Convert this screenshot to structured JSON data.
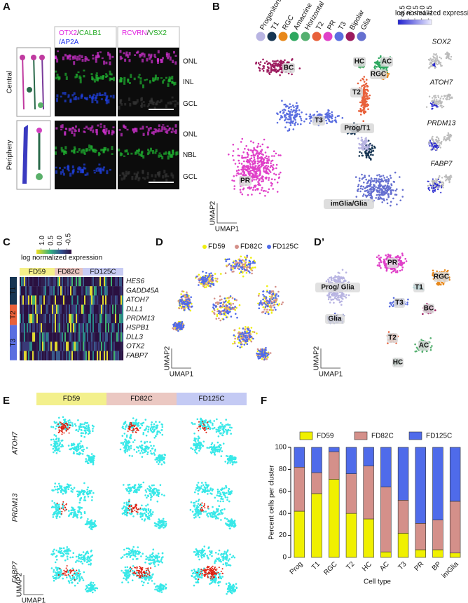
{
  "panel_a": {
    "label": "A",
    "stain_left": [
      {
        "text": "OTX2",
        "color": "#e020e0"
      },
      {
        "text": "/",
        "color": "#222222"
      },
      {
        "text": "CALB1",
        "color": "#22aa22"
      }
    ],
    "stain_left_2": [
      {
        "text": "/AP2A",
        "color": "#2233ee"
      }
    ],
    "stain_right": [
      {
        "text": "RCVRN",
        "color": "#e020e0"
      },
      {
        "text": "/",
        "color": "#222222"
      },
      {
        "text": "VSX2",
        "color": "#22aa22"
      }
    ],
    "rows": [
      "Central",
      "Periphery"
    ],
    "layers": [
      [
        "ONL",
        "INL",
        "GCL"
      ],
      [
        "ONL",
        "NBL",
        "GCL"
      ]
    ]
  },
  "panel_b": {
    "label": "B",
    "clusters": [
      {
        "name": "Progenitors",
        "color": "#b8b4e2"
      },
      {
        "name": "T1",
        "color": "#163552"
      },
      {
        "name": "RGC",
        "color": "#e8881a"
      },
      {
        "name": "Amacrine",
        "color": "#2fa860"
      },
      {
        "name": "Horizontal",
        "color": "#55b070"
      },
      {
        "name": "T2",
        "color": "#e8603a"
      },
      {
        "name": "PR",
        "color": "#e040c8"
      },
      {
        "name": "T3",
        "color": "#5a6ee0"
      },
      {
        "name": "Bipolar",
        "color": "#9c1a5e"
      },
      {
        "name": "Glia",
        "color": "#6670d0"
      }
    ],
    "colorbar": {
      "title": "log normalized expression",
      "lim": [
        3.75,
        1.25
      ],
      "ticks": [
        3.5,
        {
          "value": 3,
          "label": "3.0"
        },
        2.5,
        {
          "value": 2,
          "label": "2.0"
        },
        1.5
      ]
    },
    "cluster_labels": [
      "BC",
      "HC",
      "AC",
      "RGC",
      "T2",
      "T3",
      "Prog/T1",
      "PR",
      "imGlia/Glia"
    ],
    "genes": [
      "SOX2",
      "ATOH7",
      "PRDM13",
      "FABP7"
    ],
    "x_axis": "UMAP1",
    "y_axis": "UMAP2"
  },
  "panel_c": {
    "label": "C",
    "colorbar": {
      "title": "log normalized expression",
      "lim": [
        1.25,
        -0.75
      ],
      "ticks": [
        {
          "value": 1,
          "label": "1.0"
        },
        0.5,
        {
          "value": 0,
          "label": "0.0"
        },
        -0.5
      ]
    },
    "samples": [
      {
        "name": "FD59",
        "color": "#f5f08a"
      },
      {
        "name": "FD82C",
        "color": "#e8c4c0"
      },
      {
        "name": "FD125C",
        "color": "#c8ccf4"
      }
    ],
    "genes": [
      "HES6",
      "GADD45A",
      "ATOH7",
      "DLL1",
      "PRDM13",
      "HSPB1",
      "DLL3",
      "OTX2",
      "FABP7"
    ],
    "groups": [
      {
        "name": "T1",
        "color": "#163552"
      },
      {
        "name": "T2",
        "color": "#e8603a"
      },
      {
        "name": "T3",
        "color": "#5a6ee0"
      }
    ]
  },
  "panel_d": {
    "label": "D",
    "samples": [
      {
        "name": "FD59",
        "color": "#eeee10"
      },
      {
        "name": "FD82C",
        "color": "#d4908a"
      },
      {
        "name": "FD125C",
        "color": "#4f6bea"
      }
    ],
    "x_axis": "UMAP1",
    "y_axis": "UMAP2"
  },
  "panel_d2": {
    "label": "D’",
    "cluster_labels": [
      "PR",
      "Prog/ Glia",
      "RGC",
      "T1",
      "T3",
      "BC",
      "Glia",
      "T2",
      "AC",
      "HC"
    ],
    "x_axis": "UMAP1",
    "y_axis": "UMAP2"
  },
  "panel_e": {
    "label": "E",
    "samples": [
      {
        "name": "FD59",
        "color": "#f3f08c"
      },
      {
        "name": "FD82C",
        "color": "#ebc8c2"
      },
      {
        "name": "FD125C",
        "color": "#c4caf4"
      }
    ],
    "genes": [
      "ATOH7",
      "PRDM13",
      "FABP7"
    ],
    "x_axis": "UMAP1",
    "y_axis": "UMAP2"
  },
  "panel_f": {
    "label": "F"
  },
  "chart_data": {
    "type": "bar",
    "stacked": true,
    "ylabel": "Percent cells per cluster",
    "xlabel": "Cell type",
    "categories": [
      "Prog",
      "T1",
      "RGC",
      "T2",
      "HC",
      "AC",
      "T3",
      "PR",
      "BP",
      "imGlia"
    ],
    "series": [
      {
        "name": "FD59",
        "color": "#f0f000",
        "values": [
          42,
          58,
          71,
          40,
          35,
          5,
          22,
          7,
          7,
          4
        ]
      },
      {
        "name": "FD82C",
        "color": "#d4908a",
        "values": [
          40,
          19,
          25,
          36,
          48,
          59,
          30,
          24,
          27,
          47
        ]
      },
      {
        "name": "FD125C",
        "color": "#4f6bea",
        "values": [
          18,
          23,
          4,
          24,
          17,
          36,
          48,
          69,
          66,
          49
        ]
      }
    ],
    "ylim": [
      0,
      100
    ],
    "yticks": [
      0,
      20,
      40,
      60,
      80,
      100
    ]
  }
}
